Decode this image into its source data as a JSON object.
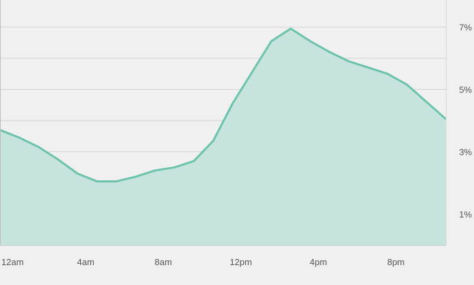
{
  "chart_data": {
    "type": "area",
    "title": "",
    "xlabel": "",
    "ylabel": "",
    "x_tick_labels": [
      "12am",
      "4am",
      "8am",
      "12pm",
      "4pm",
      "8pm"
    ],
    "y_tick_labels": [
      "1%",
      "3%",
      "5%",
      "7%"
    ],
    "hours": [
      0,
      1,
      2,
      3,
      4,
      5,
      6,
      7,
      8,
      9,
      10,
      11,
      12,
      13,
      14,
      15,
      16,
      17,
      18,
      19,
      20,
      21,
      22,
      23
    ],
    "values": [
      3.7,
      3.45,
      3.15,
      2.75,
      2.3,
      2.05,
      2.05,
      2.2,
      2.4,
      2.5,
      2.7,
      3.35,
      4.55,
      5.55,
      6.55,
      6.95,
      6.55,
      6.2,
      5.9,
      5.7,
      5.5,
      5.15,
      4.6,
      4.05
    ],
    "ylim": [
      0,
      8
    ],
    "grid": true,
    "colors": {
      "line": "#6cc3ab",
      "fill": "#c6e3dd",
      "grid": "#d2d2d2",
      "background": "#f0f0f0"
    }
  }
}
